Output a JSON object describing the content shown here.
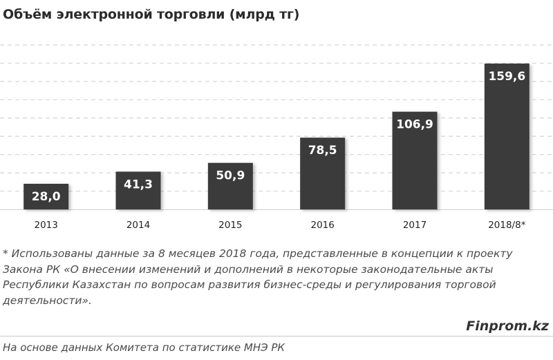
{
  "chart_data": {
    "type": "bar",
    "title": "Объём электронной торговли (млрд тг)",
    "categories": [
      "2013",
      "2014",
      "2015",
      "2016",
      "2017",
      "2018/8*"
    ],
    "values": [
      28.0,
      41.3,
      50.9,
      78.5,
      106.9,
      159.6
    ],
    "data_labels": [
      "28,0",
      "41,3",
      "50,9",
      "78,5",
      "106,9",
      "159,6"
    ],
    "xlabel": "",
    "ylabel": "",
    "ylim": [
      0,
      180
    ],
    "grid": true,
    "grid_step": 20,
    "y_tick_labels_shown": false,
    "bar_color": "#3b3b3b",
    "label_color": "#ffffff"
  },
  "footnote": "* Использованы данные за 8 месяцев 2018 года, представленные в концепции к проекту Закона РК «О внесении изменений и дополнений  в некоторые законодательные акты Республики Казахстан по вопросам развития бизнес-среды и регулирования торговой деятельности».",
  "brand": "Finprom.kz",
  "source": "На основе данных  Комитета по статистике МНЭ РК"
}
